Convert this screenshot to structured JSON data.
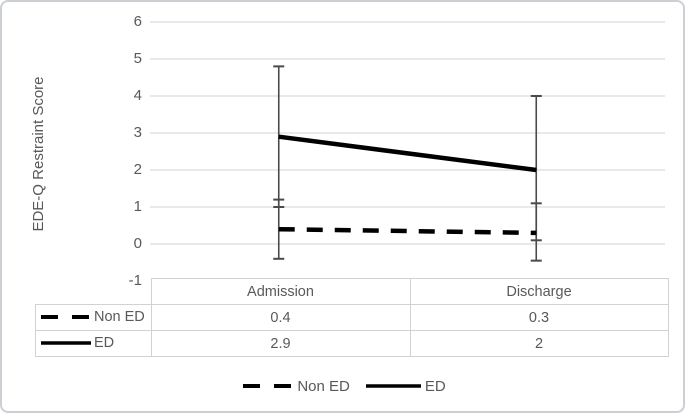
{
  "chart_data": {
    "type": "line",
    "categories": [
      "Admission",
      "Discharge"
    ],
    "series": [
      {
        "name": "Non ED",
        "style": "dashed",
        "values": [
          0.4,
          0.3
        ],
        "error_low": [
          -0.4,
          -0.45
        ],
        "error_high": [
          1.2,
          1.1
        ]
      },
      {
        "name": "ED",
        "style": "solid",
        "values": [
          2.9,
          2
        ],
        "error_low": [
          1.0,
          0.1
        ],
        "error_high": [
          4.8,
          4.0
        ]
      }
    ],
    "title": "",
    "xlabel": "",
    "ylabel": "EDE-Q Restraint Score",
    "ylim": [
      -1,
      6
    ],
    "yticks": [
      6,
      5,
      4,
      3,
      2,
      1,
      0,
      -1
    ],
    "grid": true,
    "legend_position": "bottom",
    "line_color": "#000000",
    "error_bar_color": "#4a4a4a",
    "gridline_color": "#dcdcdc"
  },
  "data_table": {
    "columns": [
      "Admission",
      "Discharge"
    ],
    "rows": [
      {
        "label": "Non ED",
        "key_style": "dashed",
        "values": [
          "0.4",
          "0.3"
        ]
      },
      {
        "label": "ED",
        "key_style": "solid",
        "values": [
          "2.9",
          "2"
        ]
      }
    ]
  },
  "legend": {
    "items": [
      {
        "label": "Non ED",
        "style": "dashed"
      },
      {
        "label": "ED",
        "style": "solid"
      }
    ]
  }
}
